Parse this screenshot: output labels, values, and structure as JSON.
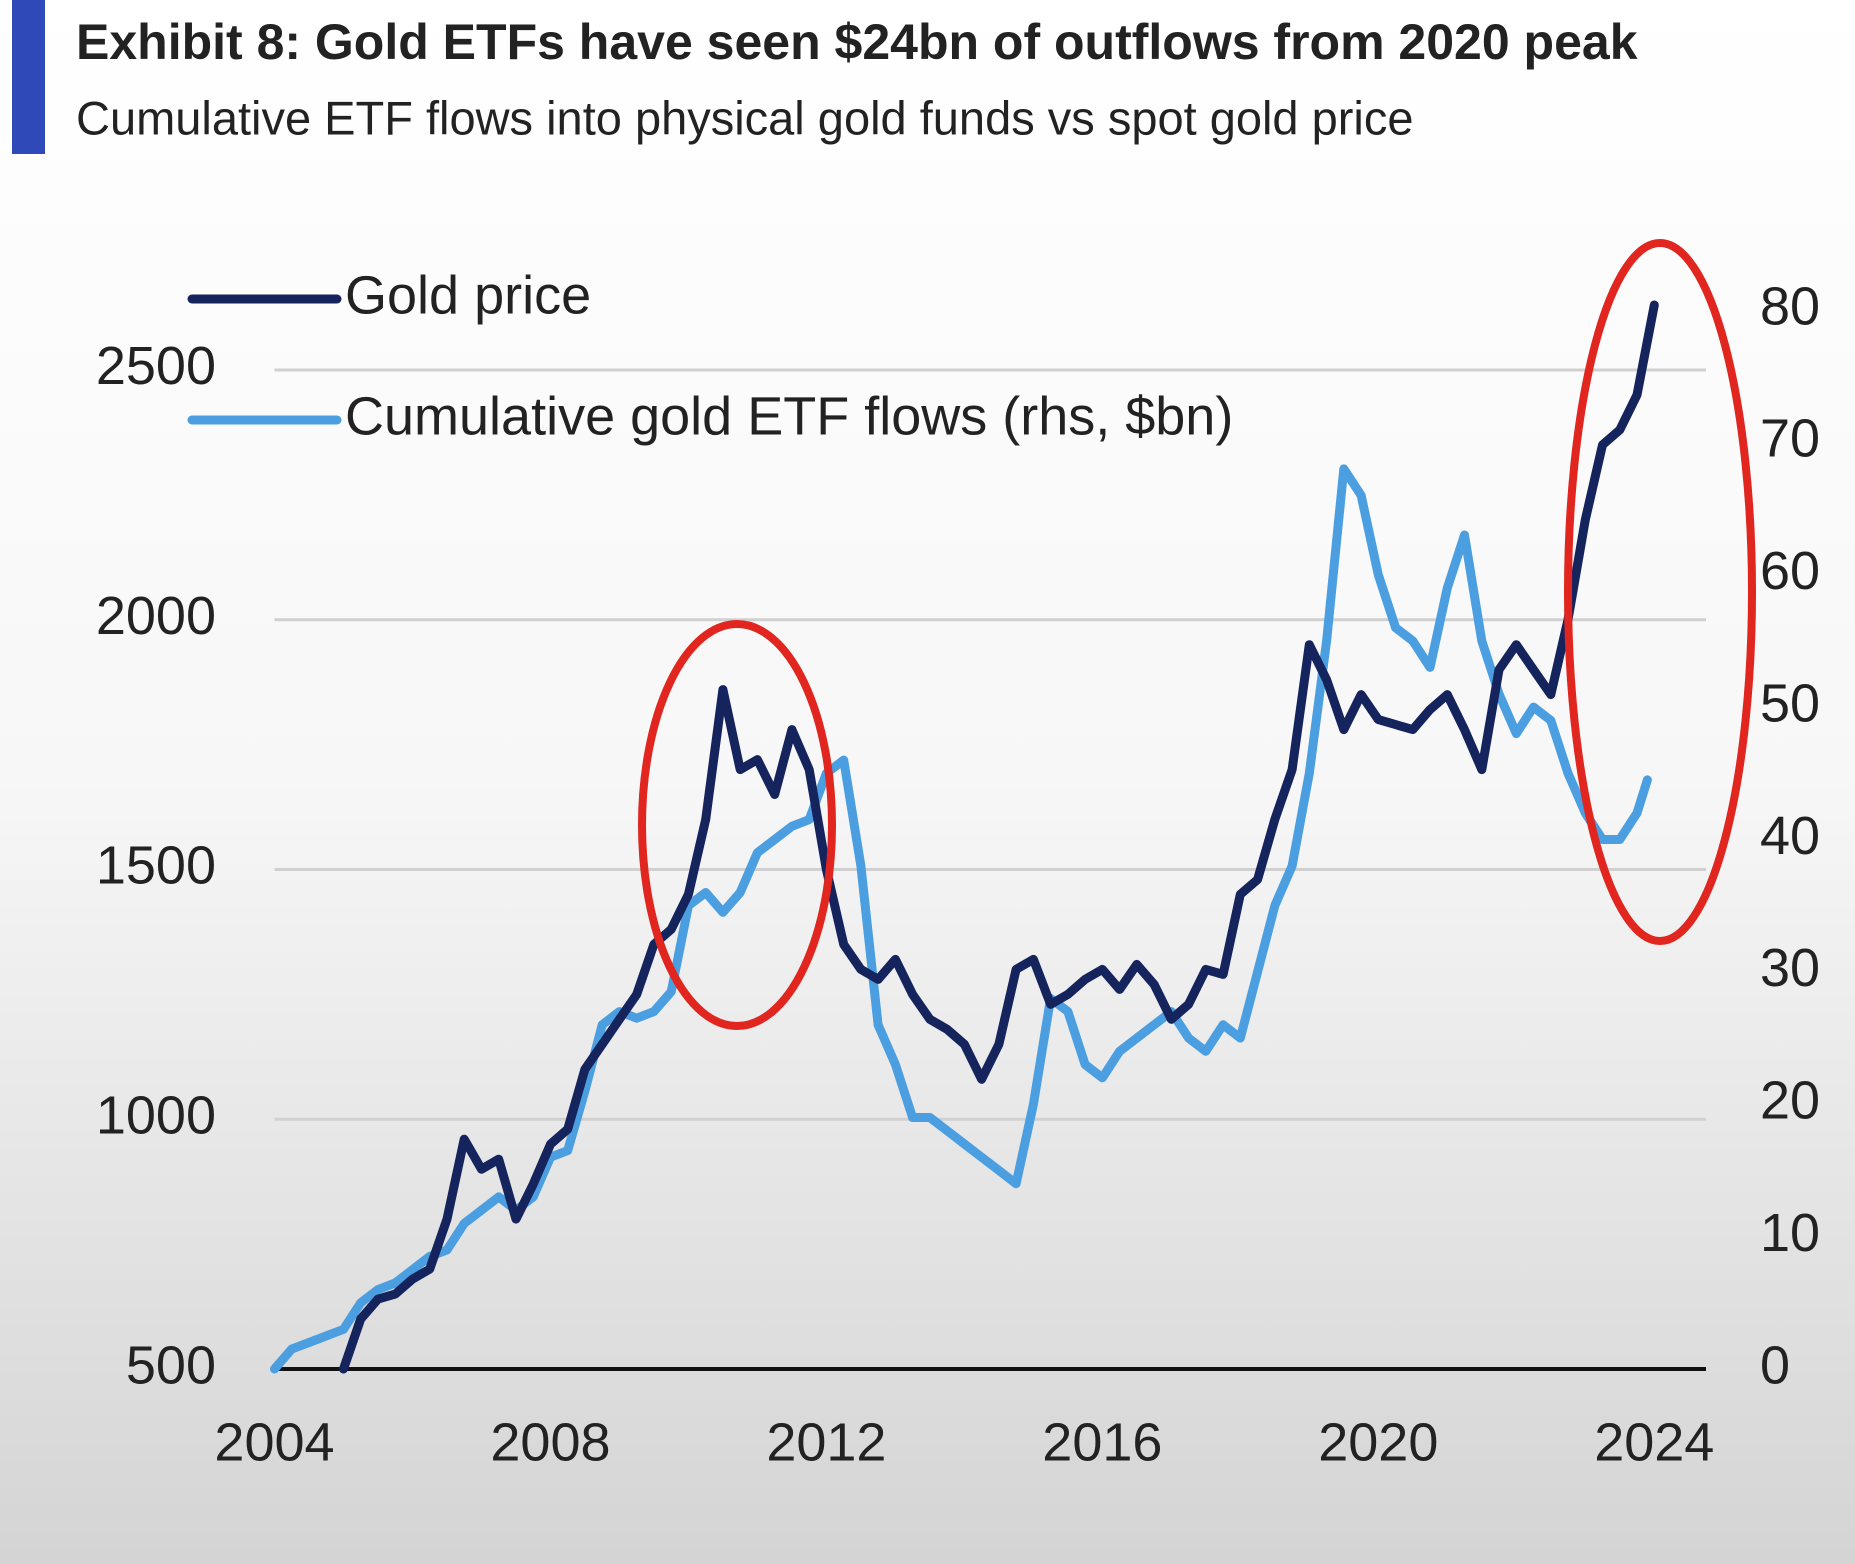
{
  "chart_data": {
    "type": "line",
    "title": "Exhibit 8: Gold ETFs have seen $24bn of outflows from 2020 peak",
    "subtitle": "Cumulative ETF flows into physical gold funds vs spot gold price",
    "xlim": [
      2004,
      2024.75
    ],
    "xticks": [
      2004,
      2008,
      2012,
      2016,
      2020,
      2024
    ],
    "ylim": [
      500,
      2620
    ],
    "yticks": [
      500,
      1000,
      1500,
      2000,
      2500
    ],
    "y2lim": [
      0,
      80
    ],
    "y2ticks": [
      0,
      10,
      20,
      30,
      40,
      50,
      60,
      70,
      80
    ],
    "grid": true,
    "legend": "top-left",
    "series": [
      {
        "name": "Gold price",
        "color": "#16245e",
        "x": [
          2005,
          2005.25,
          2005.5,
          2005.75,
          2006,
          2006.25,
          2006.5,
          2006.75,
          2007,
          2007.25,
          2007.5,
          2007.75,
          2008,
          2008.25,
          2008.5,
          2008.75,
          2009,
          2009.25,
          2009.5,
          2009.75,
          2010,
          2010.25,
          2010.5,
          2010.75,
          2011,
          2011.25,
          2011.5,
          2011.75,
          2012,
          2012.25,
          2012.5,
          2012.75,
          2013,
          2013.25,
          2013.5,
          2013.75,
          2014,
          2014.25,
          2014.5,
          2014.75,
          2015,
          2015.25,
          2015.5,
          2015.75,
          2016,
          2016.25,
          2016.5,
          2016.75,
          2017,
          2017.25,
          2017.5,
          2017.75,
          2018,
          2018.25,
          2018.5,
          2018.75,
          2019,
          2019.25,
          2019.5,
          2019.75,
          2020,
          2020.25,
          2020.5,
          2020.75,
          2021,
          2021.25,
          2021.5,
          2021.75,
          2022,
          2022.25,
          2022.5,
          2022.75,
          2023,
          2023.25,
          2023.5,
          2023.75,
          2024
        ],
        "values": [
          500,
          600,
          640,
          650,
          680,
          700,
          800,
          960,
          900,
          920,
          800,
          870,
          950,
          980,
          1100,
          1150,
          1200,
          1250,
          1350,
          1380,
          1450,
          1600,
          1860,
          1700,
          1720,
          1650,
          1780,
          1700,
          1500,
          1350,
          1300,
          1280,
          1320,
          1250,
          1200,
          1180,
          1150,
          1080,
          1150,
          1300,
          1320,
          1230,
          1250,
          1280,
          1300,
          1260,
          1310,
          1270,
          1200,
          1230,
          1300,
          1290,
          1450,
          1480,
          1600,
          1700,
          1950,
          1880,
          1780,
          1850,
          1800,
          1790,
          1780,
          1820,
          1850,
          1780,
          1700,
          1900,
          1950,
          1900,
          1850,
          2000,
          2200,
          2350,
          2380,
          2450,
          2630
        ]
      },
      {
        "name": "Cumulative gold ETF flows (rhs, $bn)",
        "color": "#4b9fe1",
        "axis": "y2",
        "x": [
          2004,
          2004.25,
          2004.5,
          2004.75,
          2005,
          2005.25,
          2005.5,
          2005.75,
          2006,
          2006.25,
          2006.5,
          2006.75,
          2007,
          2007.25,
          2007.5,
          2007.75,
          2008,
          2008.25,
          2008.5,
          2008.75,
          2009,
          2009.25,
          2009.5,
          2009.75,
          2010,
          2010.25,
          2010.5,
          2010.75,
          2011,
          2011.25,
          2011.5,
          2011.75,
          2012,
          2012.25,
          2012.5,
          2012.75,
          2013,
          2013.25,
          2013.5,
          2013.75,
          2014,
          2014.25,
          2014.5,
          2014.75,
          2015,
          2015.25,
          2015.5,
          2015.75,
          2016,
          2016.25,
          2016.5,
          2016.75,
          2017,
          2017.25,
          2017.5,
          2017.75,
          2018,
          2018.25,
          2018.5,
          2018.75,
          2019,
          2019.25,
          2019.5,
          2019.75,
          2020,
          2020.25,
          2020.5,
          2020.75,
          2021,
          2021.25,
          2021.5,
          2021.75,
          2022,
          2022.25,
          2022.5,
          2022.75,
          2023,
          2023.25,
          2023.5,
          2023.75,
          2023.9
        ],
        "values": [
          0,
          1.5,
          2,
          2.5,
          3,
          5,
          6,
          6.5,
          7.5,
          8.5,
          9,
          11,
          12,
          13,
          12,
          13,
          16,
          16.5,
          21,
          26,
          27,
          26.5,
          27,
          28.5,
          35,
          36,
          34.5,
          36,
          39,
          40,
          41,
          41.5,
          45,
          46,
          38,
          26,
          23,
          19,
          19,
          18,
          17,
          16,
          15,
          14,
          20,
          28,
          27,
          23,
          22,
          24,
          25,
          26,
          27,
          25,
          24,
          26,
          25,
          30,
          35,
          38,
          45,
          55,
          68,
          66,
          60,
          56,
          55,
          53,
          59,
          63,
          55,
          51,
          48,
          50,
          49,
          45,
          42,
          40,
          40,
          42,
          44.5
        ]
      }
    ]
  }
}
